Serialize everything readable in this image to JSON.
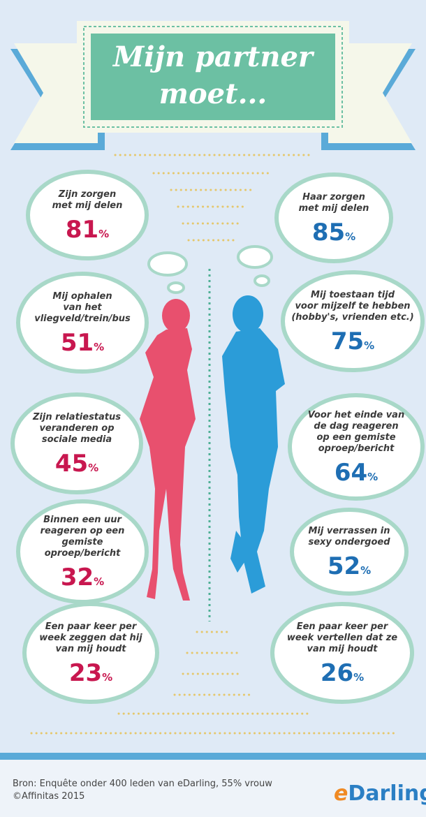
{
  "banner": {
    "title_lines": [
      "Mijn partner",
      "moet..."
    ]
  },
  "left": [
    {
      "text_lines": [
        "Zijn zorgen",
        "met mij delen"
      ],
      "value": 81,
      "unit": "%"
    },
    {
      "text_lines": [
        "Mij ophalen",
        "van het",
        "vliegveld/trein/bus"
      ],
      "value": 51,
      "unit": "%"
    },
    {
      "text_lines": [
        "Zijn relatiestatus",
        "veranderen op",
        "sociale media"
      ],
      "value": 45,
      "unit": "%"
    },
    {
      "text_lines": [
        "Binnen een uur",
        "reageren op een",
        "gemiste",
        "oproep/bericht"
      ],
      "value": 32,
      "unit": "%"
    },
    {
      "text_lines": [
        "Een paar keer per",
        "week zeggen dat hij",
        "van mij houdt"
      ],
      "value": 23,
      "unit": "%"
    }
  ],
  "right": [
    {
      "text_lines": [
        "Haar zorgen",
        "met mij delen"
      ],
      "value": 85,
      "unit": "%"
    },
    {
      "text_lines": [
        "Mij toestaan tijd",
        "voor mijzelf te hebben",
        "(hobby's, vrienden etc.)"
      ],
      "value": 75,
      "unit": "%"
    },
    {
      "text_lines": [
        "Voor het einde van",
        "de dag reageren",
        "op een gemiste",
        "oproep/bericht"
      ],
      "value": 64,
      "unit": "%"
    },
    {
      "text_lines": [
        "Mij verrassen in",
        "sexy ondergoed"
      ],
      "value": 52,
      "unit": "%"
    },
    {
      "text_lines": [
        "Een paar keer per",
        "week vertellen dat ze",
        "van mij houdt"
      ],
      "value": 26,
      "unit": "%"
    }
  ],
  "footer": {
    "source": "Bron: Enquête onder 400 leden van eDarling, 55% vrouw",
    "copyright": "©Affinitas 2015",
    "logo": {
      "prefix": "e",
      "rest": "Darling"
    }
  }
}
